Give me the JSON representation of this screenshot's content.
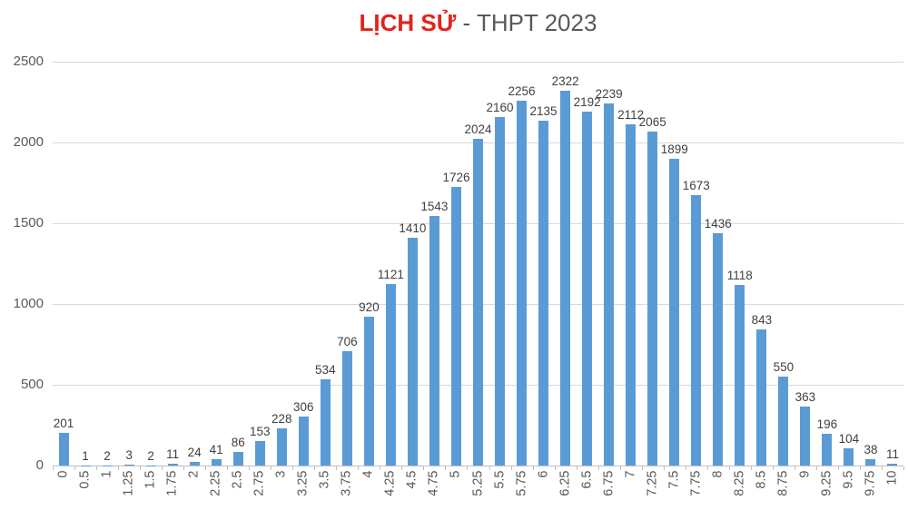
{
  "title": {
    "main": "LỊCH SỬ",
    "suffix": " - THPT 2023"
  },
  "colors": {
    "bar": "#5B9BD5",
    "title_main": "#E2231A",
    "title_suffix": "#595959",
    "axis_text": "#595959",
    "data_label": "#404040",
    "gridline": "#D9D9D9",
    "axis_line": "#BFBFBF"
  },
  "chart_data": {
    "type": "bar",
    "title": "LỊCH SỬ - THPT 2023",
    "xlabel": "",
    "ylabel": "",
    "categories": [
      "0",
      "0.5",
      "1",
      "1.25",
      "1.5",
      "1.75",
      "2",
      "2.25",
      "2.5",
      "2.75",
      "3",
      "3.25",
      "3.5",
      "3.75",
      "4",
      "4.25",
      "4.5",
      "4.75",
      "5",
      "5.25",
      "5.5",
      "5.75",
      "6",
      "6.25",
      "6.5",
      "6.75",
      "7",
      "7.25",
      "7.5",
      "7.75",
      "8",
      "8.25",
      "8.5",
      "8.75",
      "9",
      "9.25",
      "9.5",
      "9.75",
      "10"
    ],
    "values": [
      201,
      1,
      2,
      3,
      2,
      11,
      24,
      41,
      86,
      153,
      228,
      306,
      534,
      706,
      920,
      1121,
      1410,
      1543,
      1726,
      2024,
      2160,
      2256,
      2135,
      2322,
      2192,
      2239,
      2112,
      2065,
      1899,
      1673,
      1436,
      1118,
      843,
      550,
      363,
      196,
      104,
      38,
      11
    ],
    "ylim": [
      0,
      2500
    ],
    "yticks": [
      0,
      500,
      1000,
      1500,
      2000,
      2500
    ],
    "grid": true,
    "legend": false,
    "data_labels": true,
    "x_label_rotation": -90
  }
}
